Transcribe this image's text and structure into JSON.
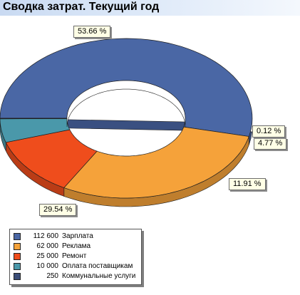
{
  "header": {
    "title": "Сводка затрат. Текущий год"
  },
  "chart_data": {
    "type": "pie",
    "style": "3d-donut",
    "title": "Сводка затрат. Текущий год",
    "legend_position": "bottom-left",
    "slices": [
      {
        "name": "Зарплата",
        "value": "112 600",
        "amount": 112600,
        "percent": "53.66 %",
        "color": "#4a67a5"
      },
      {
        "name": "Реклама",
        "value": "62 000",
        "amount": 62000,
        "percent": "29.54 %",
        "color": "#f5a23a"
      },
      {
        "name": "Ремонт",
        "value": "25 000",
        "amount": 25000,
        "percent": "11.91 %",
        "color": "#ef4d1c"
      },
      {
        "name": "Оплата поставщикам",
        "value": "10 000",
        "amount": 10000,
        "percent": "4.77 %",
        "color": "#4a98aa"
      },
      {
        "name": "Коммунальные услуги",
        "value": "250",
        "amount": 250,
        "percent": "0.12 %",
        "color": "#3b4d78"
      }
    ]
  }
}
